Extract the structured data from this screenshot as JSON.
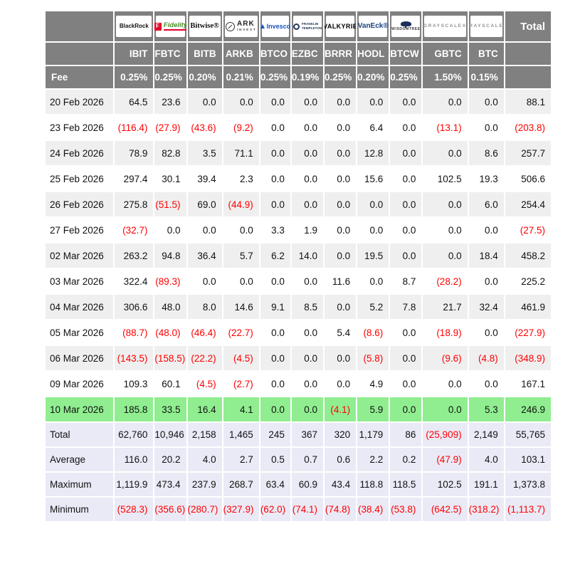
{
  "chart_data": {
    "type": "table",
    "total_label": "Total",
    "tickers": [
      "IBIT",
      "FBTC",
      "BITB",
      "ARKB",
      "BTCO",
      "EZBC",
      "BRRR",
      "HODL",
      "BTCW",
      "GBTC",
      "BTC"
    ],
    "fee_row": {
      "label": "Fee",
      "values": [
        "0.25%",
        "0.25%",
        "0.20%",
        "0.21%",
        "0.25%",
        "0.19%",
        "0.25%",
        "0.20%",
        "0.25%",
        "1.50%",
        "0.15%"
      ]
    },
    "logos": [
      {
        "id": "blackrock",
        "text": "BlackRock"
      },
      {
        "id": "fidelity",
        "icon": "F",
        "text": "Fidelity"
      },
      {
        "id": "bitwise",
        "text": "Bitwise®"
      },
      {
        "id": "ark",
        "text": "ARK",
        "subtext": "INVEST"
      },
      {
        "id": "invesco",
        "text": "Invesco"
      },
      {
        "id": "franklin",
        "text": "FRANKLIN TEMPLETON"
      },
      {
        "id": "valkyrie",
        "text": "VALKYRIE"
      },
      {
        "id": "vaneck",
        "text": "VanEck®"
      },
      {
        "id": "wisdomtree",
        "text": "WISDOMTREE"
      },
      {
        "id": "grayscale",
        "text": "GRAYSCALE®"
      },
      {
        "id": "grayscale2",
        "text": "GRAYSCALE®"
      }
    ],
    "rows": [
      {
        "date": "20 Feb 2026",
        "values": [
          "64.5",
          "23.6",
          "0.0",
          "0.0",
          "0.0",
          "0.0",
          "0.0",
          "0.0",
          "0.0",
          "0.0",
          "0.0"
        ],
        "total": "88.1",
        "highlight": false
      },
      {
        "date": "23 Feb 2026",
        "values": [
          "(116.4)",
          "(27.9)",
          "(43.6)",
          "(9.2)",
          "0.0",
          "0.0",
          "0.0",
          "6.4",
          "0.0",
          "(13.1)",
          "0.0"
        ],
        "total": "(203.8)",
        "highlight": false
      },
      {
        "date": "24 Feb 2026",
        "values": [
          "78.9",
          "82.8",
          "3.5",
          "71.1",
          "0.0",
          "0.0",
          "0.0",
          "12.8",
          "0.0",
          "0.0",
          "8.6"
        ],
        "total": "257.7",
        "highlight": false
      },
      {
        "date": "25 Feb 2026",
        "values": [
          "297.4",
          "30.1",
          "39.4",
          "2.3",
          "0.0",
          "0.0",
          "0.0",
          "15.6",
          "0.0",
          "102.5",
          "19.3"
        ],
        "total": "506.6",
        "highlight": false
      },
      {
        "date": "26 Feb 2026",
        "values": [
          "275.8",
          "(51.5)",
          "69.0",
          "(44.9)",
          "0.0",
          "0.0",
          "0.0",
          "0.0",
          "0.0",
          "0.0",
          "6.0"
        ],
        "total": "254.4",
        "highlight": false
      },
      {
        "date": "27 Feb 2026",
        "values": [
          "(32.7)",
          "0.0",
          "0.0",
          "0.0",
          "3.3",
          "1.9",
          "0.0",
          "0.0",
          "0.0",
          "0.0",
          "0.0"
        ],
        "total": "(27.5)",
        "highlight": false
      },
      {
        "date": "02 Mar 2026",
        "values": [
          "263.2",
          "94.8",
          "36.4",
          "5.7",
          "6.2",
          "14.0",
          "0.0",
          "19.5",
          "0.0",
          "0.0",
          "18.4"
        ],
        "total": "458.2",
        "highlight": false
      },
      {
        "date": "03 Mar 2026",
        "values": [
          "322.4",
          "(89.3)",
          "0.0",
          "0.0",
          "0.0",
          "0.0",
          "11.6",
          "0.0",
          "8.7",
          "(28.2)",
          "0.0"
        ],
        "total": "225.2",
        "highlight": false
      },
      {
        "date": "04 Mar 2026",
        "values": [
          "306.6",
          "48.0",
          "8.0",
          "14.6",
          "9.1",
          "8.5",
          "0.0",
          "5.2",
          "7.8",
          "21.7",
          "32.4"
        ],
        "total": "461.9",
        "highlight": false
      },
      {
        "date": "05 Mar 2026",
        "values": [
          "(88.7)",
          "(48.0)",
          "(46.4)",
          "(22.7)",
          "0.0",
          "0.0",
          "5.4",
          "(8.6)",
          "0.0",
          "(18.9)",
          "0.0"
        ],
        "total": "(227.9)",
        "highlight": false
      },
      {
        "date": "06 Mar 2026",
        "values": [
          "(143.5)",
          "(158.5)",
          "(22.2)",
          "(4.5)",
          "0.0",
          "0.0",
          "0.0",
          "(5.8)",
          "0.0",
          "(9.6)",
          "(4.8)"
        ],
        "total": "(348.9)",
        "highlight": false
      },
      {
        "date": "09 Mar 2026",
        "values": [
          "109.3",
          "60.1",
          "(4.5)",
          "(2.7)",
          "0.0",
          "0.0",
          "0.0",
          "4.9",
          "0.0",
          "0.0",
          "0.0"
        ],
        "total": "167.1",
        "highlight": false
      },
      {
        "date": "10 Mar 2026",
        "values": [
          "185.8",
          "33.5",
          "16.4",
          "4.1",
          "0.0",
          "0.0",
          "(4.1)",
          "5.9",
          "0.0",
          "0.0",
          "5.3"
        ],
        "total": "246.9",
        "highlight": true
      }
    ],
    "summary_rows": [
      {
        "label": "Total",
        "values": [
          "62,760",
          "10,946",
          "2,158",
          "1,465",
          "245",
          "367",
          "320",
          "1,179",
          "86",
          "(25,909)",
          "2,149"
        ],
        "total": "55,765"
      },
      {
        "label": "Average",
        "values": [
          "116.0",
          "20.2",
          "4.0",
          "2.7",
          "0.5",
          "0.7",
          "0.6",
          "2.2",
          "0.2",
          "(47.9)",
          "4.0"
        ],
        "total": "103.1"
      },
      {
        "label": "Maximum",
        "values": [
          "1,119.9",
          "473.4",
          "237.9",
          "268.7",
          "63.4",
          "60.9",
          "43.4",
          "118.8",
          "118.5",
          "102.5",
          "191.1"
        ],
        "total": "1,373.8"
      },
      {
        "label": "Minimum",
        "values": [
          "(528.3)",
          "(356.6)",
          "(280.7)",
          "(327.9)",
          "(62.0)",
          "(74.1)",
          "(74.8)",
          "(38.4)",
          "(53.8)",
          "(642.5)",
          "(318.2)"
        ],
        "total": "(1,113.7)"
      }
    ],
    "colors": {
      "header_bg": "#808080",
      "header_text": "#ffffff",
      "row_alt_bg": "#efefef",
      "row_bg": "#ffffff",
      "highlight_bg": "#90ee90",
      "summary_bg": "#eaeaf6",
      "negative": "#ff0000",
      "positive": "#111111"
    }
  }
}
